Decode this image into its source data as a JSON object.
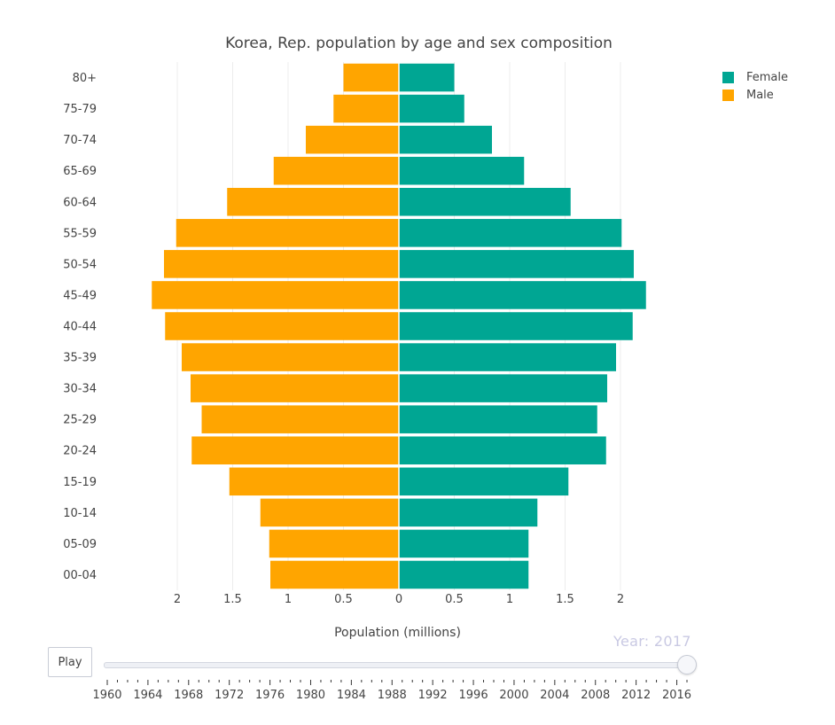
{
  "chart_data": {
    "type": "bar",
    "orientation": "horizontal",
    "title": "Korea, Rep. population by age and sex composition",
    "xlabel": "Population (millions)",
    "ylabel": "",
    "categories": [
      "00-04",
      "05-09",
      "10-14",
      "15-19",
      "20-24",
      "25-29",
      "30-34",
      "35-39",
      "40-44",
      "45-49",
      "50-54",
      "55-59",
      "60-64",
      "65-69",
      "70-74",
      "75-79",
      "80+"
    ],
    "series": [
      {
        "name": "Female",
        "color": "#00a693",
        "values": [
          1.17,
          1.17,
          1.25,
          1.53,
          1.87,
          1.79,
          1.88,
          1.96,
          2.11,
          2.23,
          2.12,
          2.01,
          1.55,
          1.13,
          0.84,
          0.59,
          0.5
        ]
      },
      {
        "name": "Male",
        "color": "#ffa500",
        "values": [
          1.16,
          1.17,
          1.25,
          1.53,
          1.87,
          1.78,
          1.88,
          1.96,
          2.11,
          2.23,
          2.12,
          2.01,
          1.55,
          1.13,
          0.84,
          0.59,
          0.5
        ]
      }
    ],
    "xlim": [
      -2.4,
      2.4
    ],
    "x_ticks": [
      -2,
      -1.5,
      -1,
      -0.5,
      0,
      0.5,
      1,
      1.5,
      2
    ],
    "x_tick_labels": [
      "2",
      "1.5",
      "1",
      "0.5",
      "0",
      "0.5",
      "1",
      "1.5",
      "2"
    ],
    "grid": true,
    "legend_placement": "top-right"
  },
  "controls": {
    "play_label": "Play",
    "year_readout": "Year: 2017",
    "slider_min": 1960,
    "slider_max": 2017,
    "slider_value": 2017,
    "slider_labels": [
      "1960",
      "1964",
      "1968",
      "1972",
      "1976",
      "1980",
      "1984",
      "1988",
      "1992",
      "1996",
      "2000",
      "2004",
      "2008",
      "2012",
      "2016"
    ]
  }
}
